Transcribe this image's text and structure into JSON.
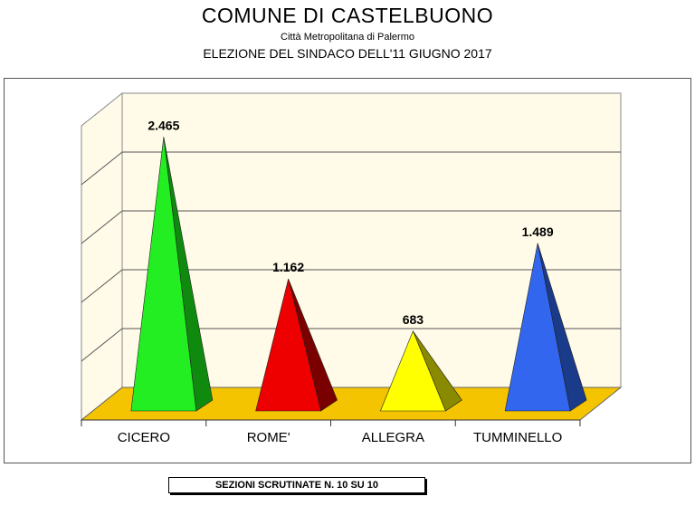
{
  "title": "COMUNE  DI  CASTELBUONO",
  "subtitle": "Città Metropolitana di Palermo",
  "subtitle2": "ELEZIONE DEL SINDACO DELL'11 GIUGNO 2017",
  "footer": "SEZIONI SCRUTINATE N. 10  SU 10",
  "colors": {
    "background_wall": "#fffbe8",
    "floor": "#f5c400",
    "gridline": "#555555"
  },
  "chart_data": {
    "type": "bar",
    "shape": "pyramid",
    "categories": [
      "CICERO",
      "ROME'",
      "ALLEGRA",
      "TUMMINELLO"
    ],
    "values": [
      2465,
      1162,
      683,
      1489
    ],
    "data_labels": [
      "2.465",
      "1.162",
      "683",
      "1.489"
    ],
    "series": [
      {
        "values": [
          2465,
          1162,
          683,
          1489
        ]
      }
    ],
    "bar_colors": [
      "#22ee22",
      "#ee0000",
      "#ffff00",
      "#3366ee"
    ],
    "bar_side_colors": [
      "#0f8a0f",
      "#7a0000",
      "#8a8a00",
      "#1a3a8a"
    ],
    "ylim": [
      0,
      2700
    ],
    "grid": true,
    "legend": "none"
  }
}
